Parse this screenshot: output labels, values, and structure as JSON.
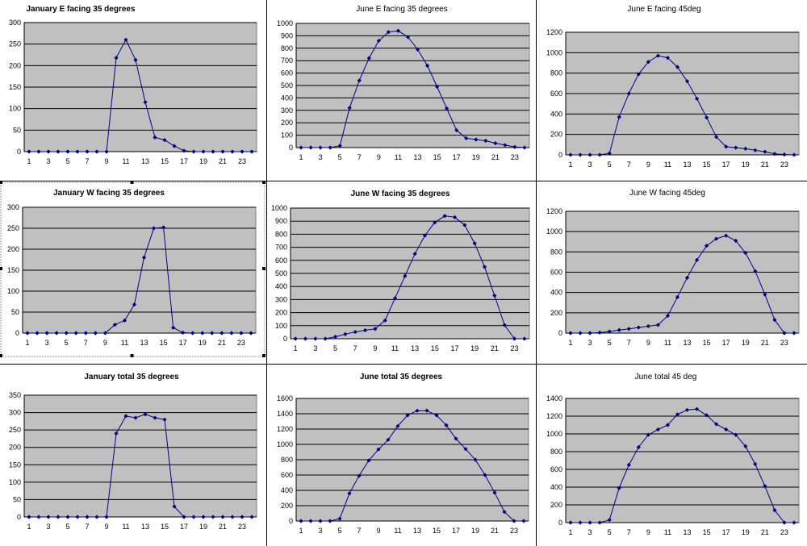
{
  "colors": {
    "plot_area": "#c0c0c0",
    "series": "#000080",
    "gridline": "#000000",
    "background": "#ffffff"
  },
  "chart_data": [
    {
      "type": "line",
      "title": "January E facing 35 degrees",
      "title_bold": true,
      "selected": false,
      "categories": [
        1,
        2,
        3,
        4,
        5,
        6,
        7,
        8,
        9,
        10,
        11,
        12,
        13,
        14,
        15,
        16,
        17,
        18,
        19,
        20,
        21,
        22,
        23,
        24
      ],
      "x_tick_labels": [
        "1",
        "3",
        "5",
        "7",
        "9",
        "11",
        "13",
        "15",
        "17",
        "19",
        "21",
        "23"
      ],
      "values": [
        0,
        0,
        0,
        0,
        0,
        0,
        0,
        0,
        0,
        218,
        260,
        213,
        115,
        33,
        27,
        13,
        2,
        0,
        0,
        0,
        0,
        0,
        0,
        0
      ],
      "ylim": [
        0,
        300
      ],
      "yticks": [
        0,
        50,
        100,
        150,
        200,
        250,
        300
      ],
      "grid": true,
      "marker": "diamond"
    },
    {
      "type": "line",
      "title": "June E facing 35 degrees",
      "title_bold": false,
      "selected": false,
      "categories": [
        1,
        2,
        3,
        4,
        5,
        6,
        7,
        8,
        9,
        10,
        11,
        12,
        13,
        14,
        15,
        16,
        17,
        18,
        19,
        20,
        21,
        22,
        23,
        24
      ],
      "x_tick_labels": [
        "1",
        "3",
        "5",
        "7",
        "9",
        "11",
        "13",
        "15",
        "17",
        "19",
        "21",
        "23"
      ],
      "values": [
        0,
        0,
        0,
        0,
        15,
        320,
        540,
        720,
        860,
        930,
        940,
        890,
        790,
        660,
        490,
        315,
        140,
        75,
        65,
        55,
        35,
        20,
        5,
        0
      ],
      "ylim": [
        0,
        1000
      ],
      "yticks": [
        0,
        100,
        200,
        300,
        400,
        500,
        600,
        700,
        800,
        900,
        1000
      ],
      "grid": true,
      "marker": "diamond"
    },
    {
      "type": "line",
      "title": "June E facing 45deg",
      "title_bold": false,
      "selected": false,
      "categories": [
        1,
        2,
        3,
        4,
        5,
        6,
        7,
        8,
        9,
        10,
        11,
        12,
        13,
        14,
        15,
        16,
        17,
        18,
        19,
        20,
        21,
        22,
        23,
        24
      ],
      "x_tick_labels": [
        "1",
        "3",
        "5",
        "7",
        "9",
        "11",
        "13",
        "15",
        "17",
        "19",
        "21",
        "23"
      ],
      "values": [
        0,
        0,
        0,
        0,
        15,
        370,
        600,
        790,
        910,
        970,
        950,
        860,
        720,
        550,
        365,
        175,
        80,
        70,
        60,
        45,
        30,
        10,
        3,
        0
      ],
      "ylim": [
        0,
        1200
      ],
      "yticks": [
        0,
        200,
        400,
        600,
        800,
        1000,
        1200
      ],
      "grid": true,
      "marker": "diamond"
    },
    {
      "type": "line",
      "title": "January W facing 35 degrees",
      "title_bold": true,
      "selected": true,
      "categories": [
        1,
        2,
        3,
        4,
        5,
        6,
        7,
        8,
        9,
        10,
        11,
        12,
        13,
        14,
        15,
        16,
        17,
        18,
        19,
        20,
        21,
        22,
        23,
        24
      ],
      "x_tick_labels": [
        "1",
        "3",
        "5",
        "7",
        "9",
        "11",
        "13",
        "15",
        "17",
        "19",
        "21",
        "23"
      ],
      "values": [
        0,
        0,
        0,
        0,
        0,
        0,
        0,
        0,
        0,
        20,
        30,
        68,
        180,
        250,
        252,
        13,
        1,
        0,
        0,
        0,
        0,
        0,
        0,
        0
      ],
      "ylim": [
        0,
        300
      ],
      "yticks": [
        0,
        50,
        100,
        150,
        200,
        250,
        300
      ],
      "grid": true,
      "marker": "diamond"
    },
    {
      "type": "line",
      "title": "June W facing 35 degrees",
      "title_bold": true,
      "selected": false,
      "categories": [
        1,
        2,
        3,
        4,
        5,
        6,
        7,
        8,
        9,
        10,
        11,
        12,
        13,
        14,
        15,
        16,
        17,
        18,
        19,
        20,
        21,
        22,
        23,
        24
      ],
      "x_tick_labels": [
        "1",
        "3",
        "5",
        "7",
        "9",
        "11",
        "13",
        "15",
        "17",
        "19",
        "21",
        "23"
      ],
      "values": [
        0,
        0,
        0,
        0,
        15,
        35,
        52,
        65,
        75,
        140,
        310,
        480,
        650,
        790,
        890,
        940,
        930,
        870,
        730,
        550,
        330,
        105,
        0,
        0
      ],
      "ylim": [
        0,
        1000
      ],
      "yticks": [
        0,
        100,
        200,
        300,
        400,
        500,
        600,
        700,
        800,
        900,
        1000
      ],
      "grid": true,
      "marker": "diamond"
    },
    {
      "type": "line",
      "title": "June W facing 45deg",
      "title_bold": false,
      "selected": false,
      "categories": [
        1,
        2,
        3,
        4,
        5,
        6,
        7,
        8,
        9,
        10,
        11,
        12,
        13,
        14,
        15,
        16,
        17,
        18,
        19,
        20,
        21,
        22,
        23,
        24
      ],
      "x_tick_labels": [
        "1",
        "3",
        "5",
        "7",
        "9",
        "11",
        "13",
        "15",
        "17",
        "19",
        "21",
        "23"
      ],
      "values": [
        0,
        0,
        0,
        5,
        15,
        30,
        42,
        55,
        68,
        80,
        170,
        355,
        545,
        720,
        860,
        930,
        960,
        910,
        790,
        610,
        380,
        130,
        0,
        0
      ],
      "ylim": [
        0,
        1200
      ],
      "yticks": [
        0,
        200,
        400,
        600,
        800,
        1000,
        1200
      ],
      "grid": true,
      "marker": "diamond"
    },
    {
      "type": "line",
      "title": "January total 35 degrees",
      "title_bold": true,
      "selected": false,
      "categories": [
        1,
        2,
        3,
        4,
        5,
        6,
        7,
        8,
        9,
        10,
        11,
        12,
        13,
        14,
        15,
        16,
        17,
        18,
        19,
        20,
        21,
        22,
        23,
        24
      ],
      "x_tick_labels": [
        "1",
        "3",
        "5",
        "7",
        "9",
        "11",
        "13",
        "15",
        "17",
        "19",
        "21",
        "23"
      ],
      "values": [
        0,
        0,
        0,
        0,
        0,
        0,
        0,
        0,
        0,
        240,
        290,
        285,
        295,
        285,
        280,
        30,
        0,
        0,
        0,
        0,
        0,
        0,
        0,
        0
      ],
      "ylim": [
        0,
        350
      ],
      "yticks": [
        0,
        50,
        100,
        150,
        200,
        250,
        300,
        350
      ],
      "grid": true,
      "marker": "diamond"
    },
    {
      "type": "line",
      "title": "June total 35 degrees",
      "title_bold": true,
      "selected": false,
      "categories": [
        1,
        2,
        3,
        4,
        5,
        6,
        7,
        8,
        9,
        10,
        11,
        12,
        13,
        14,
        15,
        16,
        17,
        18,
        19,
        20,
        21,
        22,
        23,
        24
      ],
      "x_tick_labels": [
        "1",
        "3",
        "5",
        "7",
        "9",
        "11",
        "13",
        "15",
        "17",
        "19",
        "21",
        "23"
      ],
      "values": [
        0,
        0,
        0,
        0,
        30,
        360,
        590,
        790,
        935,
        1060,
        1240,
        1380,
        1440,
        1440,
        1380,
        1250,
        1075,
        940,
        800,
        600,
        370,
        120,
        0,
        0
      ],
      "ylim": [
        0,
        1600
      ],
      "yticks": [
        0,
        200,
        400,
        600,
        800,
        1000,
        1200,
        1400,
        1600
      ],
      "grid": true,
      "marker": "diamond"
    },
    {
      "type": "line",
      "title": "June total 45 deg",
      "title_bold": false,
      "selected": false,
      "categories": [
        1,
        2,
        3,
        4,
        5,
        6,
        7,
        8,
        9,
        10,
        11,
        12,
        13,
        14,
        15,
        16,
        17,
        18,
        19,
        20,
        21,
        22,
        23,
        24
      ],
      "x_tick_labels": [
        "1",
        "3",
        "5",
        "7",
        "9",
        "11",
        "13",
        "15",
        "17",
        "19",
        "21",
        "23"
      ],
      "values": [
        0,
        0,
        0,
        0,
        30,
        390,
        650,
        850,
        990,
        1050,
        1100,
        1220,
        1270,
        1280,
        1210,
        1110,
        1050,
        990,
        860,
        660,
        410,
        140,
        0,
        0
      ],
      "ylim": [
        0,
        1400
      ],
      "yticks": [
        0,
        200,
        400,
        600,
        800,
        1000,
        1200,
        1400
      ],
      "grid": true,
      "marker": "diamond"
    }
  ]
}
